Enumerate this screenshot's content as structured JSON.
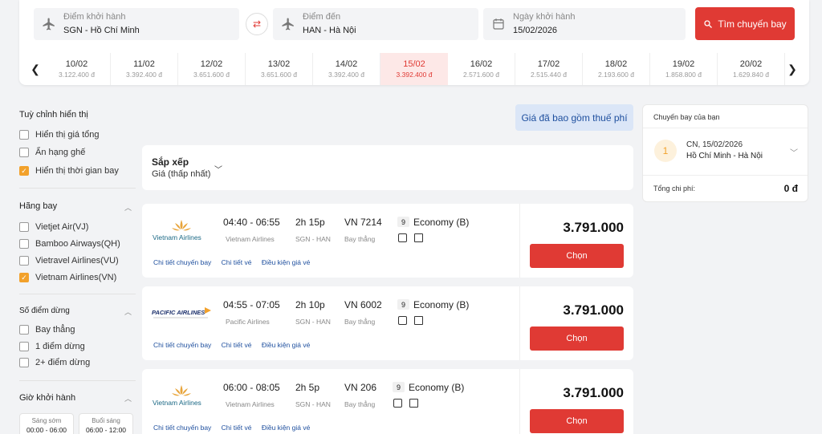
{
  "search": {
    "origin_label": "Điểm khởi hành",
    "origin_value": "SGN - Hồ Chí Minh",
    "destination_label": "Điểm đến",
    "destination_value": "HAN - Hà Nội",
    "date_label": "Ngày khởi hành",
    "date_value": "15/02/2026",
    "search_button": "Tìm chuyến bay"
  },
  "date_strip": [
    {
      "date": "10/02",
      "price": "3.122.400 đ"
    },
    {
      "date": "11/02",
      "price": "3.392.400 đ"
    },
    {
      "date": "12/02",
      "price": "3.651.600 đ"
    },
    {
      "date": "13/02",
      "price": "3.651.600 đ"
    },
    {
      "date": "14/02",
      "price": "3.392.400 đ"
    },
    {
      "date": "15/02",
      "price": "3.392.400 đ",
      "active": true
    },
    {
      "date": "16/02",
      "price": "2.571.600 đ"
    },
    {
      "date": "17/02",
      "price": "2.515.440 đ"
    },
    {
      "date": "18/02",
      "price": "2.193.600 đ"
    },
    {
      "date": "19/02",
      "price": "1.858.800 đ"
    },
    {
      "date": "20/02",
      "price": "1.629.840 đ"
    }
  ],
  "sidebar": {
    "display_title": "Tuỳ chỉnh hiển thị",
    "display_options": [
      {
        "label": "Hiển thị giá tổng",
        "checked": false
      },
      {
        "label": "Ẩn hạng ghế",
        "checked": false
      },
      {
        "label": "Hiển thị thời gian bay",
        "checked": true
      }
    ],
    "airlines_title": "Hãng bay",
    "airlines": [
      {
        "label": "Vietjet Air(VJ)",
        "checked": false
      },
      {
        "label": "Bamboo Airways(QH)",
        "checked": false
      },
      {
        "label": "Vietravel Airlines(VU)",
        "checked": false
      },
      {
        "label": "Vietnam Airlines(VN)",
        "checked": true
      }
    ],
    "stops_title": "Số điểm dừng",
    "stops": [
      {
        "label": "Bay thẳng",
        "checked": false
      },
      {
        "label": "1 điểm dừng",
        "checked": false
      },
      {
        "label": "2+ điểm dừng",
        "checked": false
      }
    ],
    "departure_title": "Giờ khởi hành",
    "departure_slots": [
      {
        "name": "Sáng sớm",
        "range": "00:00 - 06:00"
      },
      {
        "name": "Buổi sáng",
        "range": "06:00 - 12:00"
      }
    ]
  },
  "tax_note": "Giá đã bao gồm thuế phí",
  "sort": {
    "title": "Sắp xếp",
    "value": "Giá (thấp nhất)"
  },
  "flights": [
    {
      "airline_logo": "Vietnam Airlines",
      "times": "04:40 - 06:55",
      "airline": "Vietnam Airlines",
      "duration": "2h 15p",
      "route": "SGN - HAN",
      "flight_no": "VN 7214",
      "stop": "Bay thẳng",
      "baggage": "9",
      "cabin": "Economy (B)",
      "price": "3.791.000",
      "choose": "Chọn",
      "links": [
        "Chi tiết chuyến bay",
        "Chi tiết vé",
        "Điều kiện giá vé"
      ]
    },
    {
      "airline_logo": "PACIFIC AIRLINES",
      "times": "04:55 - 07:05",
      "airline": "Pacific Airlines",
      "duration": "2h 10p",
      "route": "SGN - HAN",
      "flight_no": "VN 6002",
      "stop": "Bay thẳng",
      "baggage": "9",
      "cabin": "Economy (B)",
      "price": "3.791.000",
      "choose": "Chọn",
      "links": [
        "Chi tiết chuyến bay",
        "Chi tiết vé",
        "Điều kiện giá vé"
      ]
    },
    {
      "airline_logo": "Vietnam Airlines",
      "times": "06:00 - 08:05",
      "airline": "Vietnam Airlines",
      "duration": "2h 5p",
      "route": "SGN - HAN",
      "flight_no": "VN 206",
      "stop": "Bay thẳng",
      "baggage": "9",
      "cabin": "Economy (B)",
      "price": "3.791.000",
      "choose": "Chọn",
      "links": [
        "Chi tiết chuyến bay",
        "Chi tiết vé",
        "Điều kiện giá vé"
      ]
    }
  ],
  "your_flight": {
    "header": "Chuyến bay của bạn",
    "index": "1",
    "date": "CN, 15/02/2026",
    "route": "Hồ Chí Minh - Hà Nội",
    "total_label": "Tổng chi phí:",
    "total_value": "0 đ"
  },
  "colors": {
    "accent": "#e03a34",
    "check": "#f2a12b",
    "link": "#1e4f9e"
  }
}
